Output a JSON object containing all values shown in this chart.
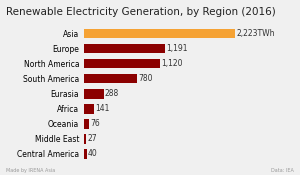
{
  "title": "Renewable Electricity Generation, by Region (2016)",
  "categories": [
    "Central America",
    "Middle East",
    "Oceania",
    "Africa",
    "Eurasia",
    "South America",
    "North America",
    "Europe",
    "Asia"
  ],
  "values": [
    40,
    27,
    76,
    141,
    288,
    780,
    1120,
    1191,
    2223
  ],
  "labels": [
    "40",
    "27",
    "76",
    "141",
    "288",
    "780",
    "1,120",
    "1,191",
    "2,223TWh"
  ],
  "bar_colors": [
    "#8b0000",
    "#8b0000",
    "#8b0000",
    "#8b0000",
    "#8b0000",
    "#8b0000",
    "#8b0000",
    "#8b0000",
    "#f5a234"
  ],
  "background_color": "#f0f0f0",
  "title_fontsize": 7.5,
  "label_fontsize": 5.5,
  "tick_fontsize": 5.5,
  "footer_left": "Made by IRENA Asia",
  "footer_right": "Data: IEA",
  "xlim": 2600
}
